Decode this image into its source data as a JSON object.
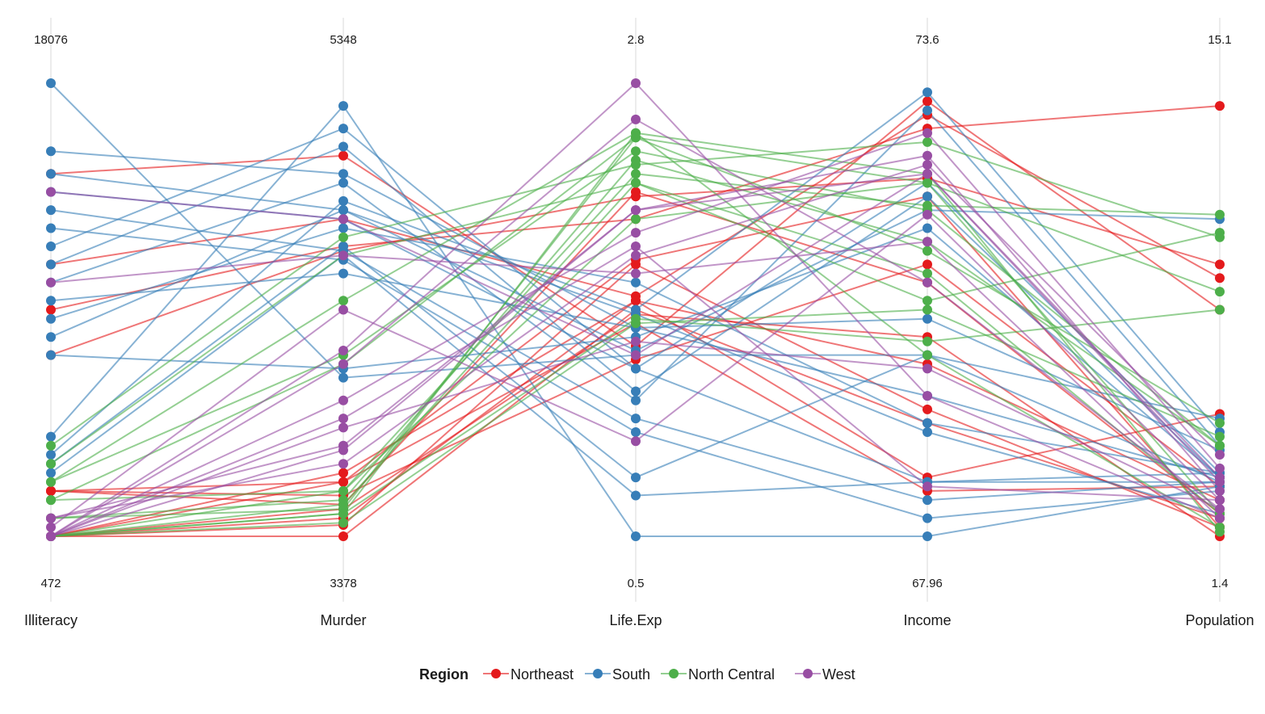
{
  "chart_data": {
    "type": "parallel-coordinates",
    "title": "",
    "legend_title": "Region",
    "legend_position": "bottom",
    "grid": false,
    "axes": [
      {
        "name": "Illiteracy",
        "max_label": "18076",
        "min_label": "472"
      },
      {
        "name": "Murder",
        "max_label": "5348",
        "min_label": "3378"
      },
      {
        "name": "Life.Exp",
        "max_label": "2.8",
        "min_label": "0.5"
      },
      {
        "name": "Income",
        "max_label": "73.6",
        "min_label": "67.96"
      },
      {
        "name": "Population",
        "max_label": "15.1",
        "min_label": "1.4"
      }
    ],
    "series": [
      {
        "name": "Northeast",
        "color": "#e41a1c",
        "lines": [
          [
            0.8,
            0.84,
            0.42,
            0.96,
            0.5
          ],
          [
            0.6,
            0.7,
            0.53,
            0.93,
            0.57
          ],
          [
            0.5,
            0.64,
            0.7,
            0.9,
            0.95
          ],
          [
            0.4,
            0.63,
            0.75,
            0.79,
            0.6
          ],
          [
            0.1,
            0.12,
            0.61,
            0.75,
            0.02
          ],
          [
            0.1,
            0.09,
            0.39,
            0.6,
            0.11
          ],
          [
            0.1,
            0.07,
            0.76,
            0.56,
            0.05
          ],
          [
            0.0,
            0.06,
            0.49,
            0.44,
            0.0
          ],
          [
            0.0,
            0.04,
            0.52,
            0.38,
            0.08
          ],
          [
            0.0,
            0.025,
            0.6,
            0.28,
            0.02
          ],
          [
            0.0,
            0.0,
            0.5,
            0.25,
            0.04
          ],
          [
            0.0,
            0.14,
            0.52,
            0.13,
            0.27
          ],
          [
            0.0,
            0.12,
            0.47,
            0.1,
            0.11
          ]
        ]
      },
      {
        "name": "South",
        "color": "#377eb8",
        "lines": [
          [
            1.0,
            0.35,
            0.4,
            0.4,
            0.26
          ],
          [
            0.85,
            0.8,
            0.46,
            0.48,
            0.19
          ],
          [
            0.8,
            0.72,
            0.49,
            0.23,
            0.05
          ],
          [
            0.76,
            0.7,
            0.37,
            0.12,
            0.14
          ],
          [
            0.72,
            0.63,
            0.26,
            0.08,
            0.12
          ],
          [
            0.68,
            0.61,
            0.23,
            0.04,
            0.1
          ],
          [
            0.64,
            0.9,
            0.37,
            0.78,
            0.14
          ],
          [
            0.6,
            0.86,
            0.32,
            0.75,
            0.13
          ],
          [
            0.56,
            0.78,
            0.3,
            0.94,
            0.2
          ],
          [
            0.52,
            0.58,
            0.46,
            0.31,
            0.13
          ],
          [
            0.48,
            0.68,
            0.56,
            0.25,
            0.14
          ],
          [
            0.44,
            0.72,
            0.41,
            0.72,
            0.7
          ],
          [
            0.4,
            0.37,
            0.44,
            0.68,
            0.13
          ],
          [
            0.22,
            0.95,
            0.0,
            0.0,
            0.11
          ],
          [
            0.18,
            0.74,
            0.5,
            0.98,
            0.23
          ],
          [
            0.16,
            0.64,
            0.13,
            0.4,
            0.12
          ],
          [
            0.14,
            0.62,
            0.09,
            0.12,
            0.12
          ]
        ]
      },
      {
        "name": "North Central",
        "color": "#4daf4a",
        "lines": [
          [
            0.2,
            0.66,
            0.82,
            0.87,
            0.66
          ],
          [
            0.16,
            0.62,
            0.78,
            0.58,
            0.05
          ],
          [
            0.12,
            0.52,
            0.89,
            0.8,
            0.01
          ],
          [
            0.12,
            0.4,
            0.85,
            0.72,
            0.2
          ],
          [
            0.08,
            0.38,
            0.88,
            0.78,
            0.54
          ],
          [
            0.08,
            0.1,
            0.8,
            0.73,
            0.71
          ],
          [
            0.04,
            0.08,
            0.83,
            0.65,
            0.2
          ],
          [
            0.04,
            0.06,
            0.88,
            0.63,
            0.25
          ],
          [
            0.0,
            0.1,
            0.7,
            0.78,
            0.05
          ],
          [
            0.0,
            0.07,
            0.78,
            0.52,
            0.67
          ],
          [
            0.0,
            0.05,
            0.89,
            0.4,
            0.02
          ],
          [
            0.0,
            0.03,
            0.47,
            0.5,
            0.22
          ],
          [
            0.0,
            0.05,
            0.48,
            0.43,
            0.5
          ]
        ]
      },
      {
        "name": "West",
        "color": "#984ea3",
        "lines": [
          [
            0.76,
            0.7,
            0.4,
            0.8,
            0.13
          ],
          [
            0.56,
            0.62,
            0.58,
            0.65,
            0.04
          ],
          [
            0.04,
            0.16,
            0.62,
            0.82,
            0.18
          ],
          [
            0.04,
            0.2,
            0.72,
            0.84,
            0.1
          ],
          [
            0.0,
            0.38,
            0.92,
            0.56,
            0.06
          ],
          [
            0.02,
            0.5,
            0.21,
            0.71,
            0.08
          ],
          [
            0.0,
            0.3,
            0.67,
            0.89,
            0.15
          ],
          [
            0.0,
            0.19,
            0.72,
            0.8,
            0.12
          ],
          [
            0.0,
            0.41,
            1.0,
            0.31,
            0.04
          ],
          [
            0.0,
            0.26,
            0.64,
            0.11,
            0.08
          ],
          [
            0.0,
            0.24,
            0.43,
            0.37,
            0.06
          ]
        ]
      }
    ]
  }
}
